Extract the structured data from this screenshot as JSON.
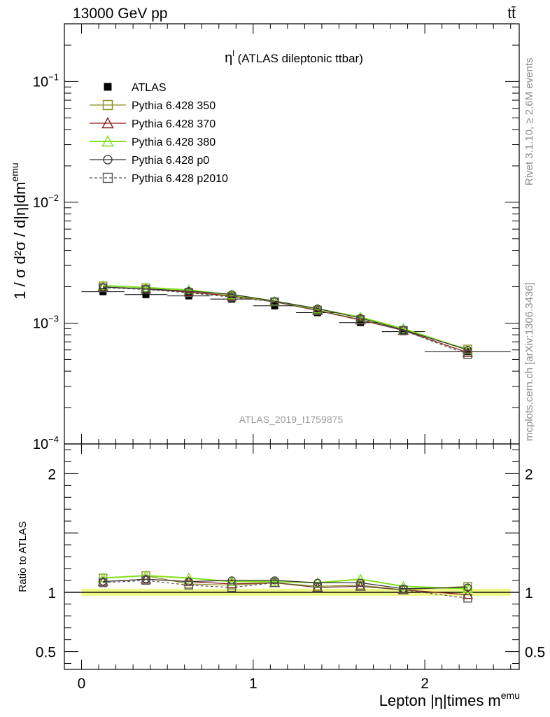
{
  "header": {
    "left": "13000 GeV pp",
    "right": "tt̄"
  },
  "side": {
    "rivet": "Rivet 3.1.10, ≥ 2.6M events",
    "mcplots": "mcplots.cern.ch [arXiv:1306.3436]"
  },
  "chart_data": {
    "type": "line",
    "title": "η",
    "title_sup": "l",
    "title_rest": " (ATLAS dileptonic ttbar)",
    "watermark": "ATLAS_2019_I1759875",
    "xlabel": "Lepton |η|times m",
    "xlabel_sup": "emu",
    "ylabel": "1 / σ d²σ / d|η|dm",
    "ylabel_sup": "emu",
    "ratio_ylabel": "Ratio to ATLAS",
    "xlim": [
      -0.1,
      2.55
    ],
    "ylim": [
      0.0001,
      0.3
    ],
    "yscale": "log",
    "ratio_ylim": [
      0.35,
      2.25
    ],
    "x_ticks": [
      0,
      1,
      2
    ],
    "y_ticks": [
      {
        "value": 0.1,
        "base": "10",
        "exp": "−1"
      },
      {
        "value": 0.01,
        "base": "10",
        "exp": "−2"
      },
      {
        "value": 0.001,
        "base": "10",
        "exp": "−3"
      },
      {
        "value": 0.0001,
        "base": "10",
        "exp": "−4"
      }
    ],
    "ratio_ticks": [
      0.5,
      1,
      2
    ],
    "x": [
      0.125,
      0.375,
      0.625,
      0.875,
      1.125,
      1.375,
      1.625,
      1.875,
      2.25
    ],
    "x_err": [
      0.125,
      0.125,
      0.125,
      0.125,
      0.125,
      0.125,
      0.125,
      0.125,
      0.25
    ],
    "series": [
      {
        "name": "ATLAS",
        "color": "#000000",
        "marker": "square-filled",
        "dash": "",
        "is_data": true,
        "values": [
          0.00182,
          0.00172,
          0.00168,
          0.00158,
          0.00139,
          0.00122,
          0.00101,
          0.00085,
          0.00058
        ],
        "ratio": [
          1,
          1,
          1,
          1,
          1,
          1,
          1,
          1,
          1
        ]
      },
      {
        "name": "Pythia 6.428 350",
        "color": "#8c8c1a",
        "marker": "square-open",
        "dash": "",
        "values": [
          0.00203,
          0.00196,
          0.0018,
          0.00167,
          0.0015,
          0.00128,
          0.00107,
          0.00087,
          0.00061
        ],
        "ratio": [
          1.12,
          1.14,
          1.07,
          1.06,
          1.08,
          1.05,
          1.06,
          1.02,
          1.05
        ]
      },
      {
        "name": "Pythia 6.428 370",
        "color": "#8b1a1a",
        "marker": "triangle-open",
        "dash": "",
        "values": [
          0.00199,
          0.00191,
          0.00181,
          0.00168,
          0.0015,
          0.00127,
          0.00106,
          0.00087,
          0.00057
        ],
        "ratio": [
          1.09,
          1.11,
          1.09,
          1.07,
          1.08,
          1.04,
          1.05,
          1.02,
          0.98
        ]
      },
      {
        "name": "Pythia 6.428 380",
        "color": "#7fe01a",
        "marker": "triangle-open",
        "dash": "",
        "values": [
          0.00204,
          0.00197,
          0.00188,
          0.00171,
          0.00152,
          0.00131,
          0.00112,
          0.0009,
          0.0006
        ],
        "ratio": [
          1.12,
          1.14,
          1.12,
          1.09,
          1.09,
          1.08,
          1.11,
          1.05,
          1.03
        ]
      },
      {
        "name": "Pythia 6.428 p0",
        "color": "#333333",
        "marker": "circle-open",
        "dash": "",
        "values": [
          0.00199,
          0.00192,
          0.00184,
          0.00173,
          0.00152,
          0.00132,
          0.0011,
          0.00088,
          0.0006
        ],
        "ratio": [
          1.09,
          1.11,
          1.09,
          1.1,
          1.1,
          1.08,
          1.08,
          1.03,
          1.04
        ]
      },
      {
        "name": "Pythia 6.428 p2010",
        "color": "#555555",
        "marker": "square-open",
        "dash": "4,3",
        "values": [
          0.00196,
          0.0019,
          0.00178,
          0.00164,
          0.0015,
          0.00127,
          0.00106,
          0.00087,
          0.00055
        ],
        "ratio": [
          1.08,
          1.1,
          1.06,
          1.04,
          1.08,
          1.04,
          1.05,
          1.02,
          0.95
        ]
      }
    ],
    "legend_position": "top-left",
    "grid": false
  }
}
